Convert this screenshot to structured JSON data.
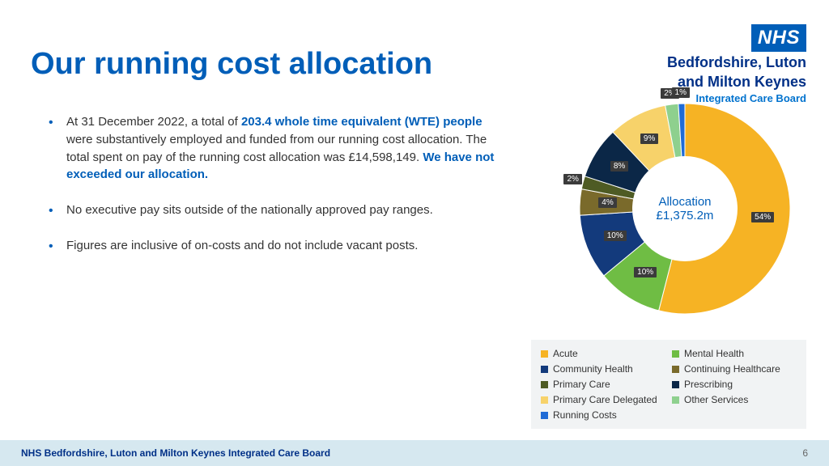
{
  "logo": {
    "badge": "NHS",
    "org_line1": "Bedfordshire, Luton",
    "org_line2": "and Milton Keynes",
    "sub": "Integrated Care Board"
  },
  "title": "Our running cost allocation",
  "bullets": [
    {
      "pre": "At 31 December 2022, a total of ",
      "em1": "203.4 whole time equivalent (WTE) people",
      "mid": " were substantively employed and funded from our running cost allocation.  The total spent on pay of the running cost allocation was £14,598,149.  ",
      "em2": "We have not exceeded our allocation."
    },
    {
      "pre": "No executive pay sits outside of the nationally approved pay ranges.",
      "em1": "",
      "mid": "",
      "em2": ""
    },
    {
      "pre": "Figures are inclusive of on-costs and do not include vacant posts.",
      "em1": "",
      "mid": "",
      "em2": ""
    }
  ],
  "chart": {
    "type": "donut",
    "center_text1": "Allocation",
    "center_text2": "£1,375.2m",
    "hole_ratio": 0.46,
    "background_color": "#ffffff",
    "label_bg": "#3b3b3b",
    "label_color": "#ffffff",
    "label_fontsize": 10,
    "slices": [
      {
        "name": "Acute",
        "value": 54,
        "color": "#f6b324",
        "label": "54%"
      },
      {
        "name": "Mental Health",
        "value": 10,
        "color": "#6fbd44",
        "label": "10%"
      },
      {
        "name": "Community Health",
        "value": 10,
        "color": "#133a7c",
        "label": "10%"
      },
      {
        "name": "Continuing Healthcare",
        "value": 4,
        "color": "#7a6a2b",
        "label": "4%"
      },
      {
        "name": "Primary Care",
        "value": 2,
        "color": "#4e5b24",
        "label": "2%"
      },
      {
        "name": "Prescribing",
        "value": 8,
        "color": "#0b2747",
        "label": "8%"
      },
      {
        "name": "Primary Care Delegated",
        "value": 9,
        "color": "#f7d26a",
        "label": "9%"
      },
      {
        "name": "Other Services",
        "value": 2,
        "color": "#8ed08e",
        "label": "2%"
      },
      {
        "name": "Running Costs",
        "value": 1,
        "color": "#1f6bd6",
        "label": "1%"
      }
    ],
    "legend_order": [
      "Acute",
      "Mental Health",
      "Community Health",
      "Continuing Healthcare",
      "Primary Care",
      "Prescribing",
      "Primary Care Delegated",
      "Other Services",
      "Running Costs"
    ]
  },
  "footer": {
    "text": "NHS Bedfordshire, Luton and Milton Keynes Integrated Care Board",
    "page": "6"
  }
}
